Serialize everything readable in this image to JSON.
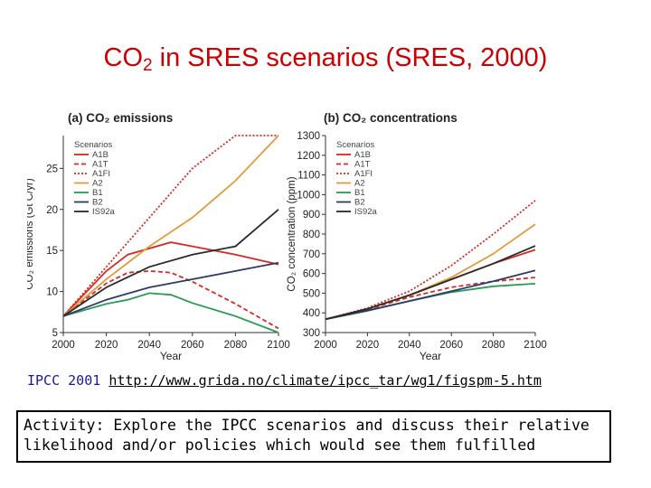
{
  "slide": {
    "title_main": "CO",
    "title_sub": "2",
    "title_rest": " in SRES scenarios (SRES, 2000)",
    "source_prefix": "IPCC 2001",
    "source_link": "http://www.grida.no/climate/ipcc_tar/wg1/figspm-5.htm",
    "activity": "Activity: Explore the IPCC scenarios and discuss their relative likelihood and/or policies which would see them fulfilled"
  },
  "colors": {
    "A1B": "#d42a24",
    "A1T": "#d42a24",
    "A1FI": "#d42a24",
    "A2": "#e39a3e",
    "B1": "#2a9a55",
    "B2": "#2e3a66",
    "IS92a": "#2a2a2a"
  },
  "chart_data": [
    {
      "type": "line",
      "title": "(a) CO₂ emissions",
      "xlabel": "Year",
      "ylabel": "CO₂ emissions (Gt C/yr)",
      "xlim": [
        2000,
        2100
      ],
      "ylim": [
        5,
        29
      ],
      "xticks": [
        2000,
        2020,
        2040,
        2060,
        2080,
        2100
      ],
      "yticks": [
        5,
        10,
        15,
        20,
        25
      ],
      "legend_title": "Scenarios",
      "legend_position": "top-left",
      "series": [
        {
          "name": "A1B",
          "style": "solid",
          "x": [
            2000,
            2020,
            2030,
            2050,
            2060,
            2080,
            2100
          ],
          "y": [
            7,
            12.5,
            14.5,
            16,
            15.5,
            14.5,
            13.3
          ]
        },
        {
          "name": "A1T",
          "style": "dashed",
          "x": [
            2000,
            2020,
            2030,
            2040,
            2050,
            2060,
            2080,
            2100
          ],
          "y": [
            7,
            11,
            12.3,
            12.5,
            12.3,
            11.2,
            8.5,
            5.5
          ]
        },
        {
          "name": "A1FI",
          "style": "dotted",
          "x": [
            2000,
            2020,
            2040,
            2060,
            2080,
            2100
          ],
          "y": [
            7,
            13,
            19,
            25,
            29,
            29
          ]
        },
        {
          "name": "A2",
          "style": "solid",
          "x": [
            2000,
            2020,
            2040,
            2060,
            2080,
            2100
          ],
          "y": [
            7,
            11.5,
            15.5,
            19,
            23.5,
            29
          ]
        },
        {
          "name": "B1",
          "style": "solid",
          "x": [
            2000,
            2020,
            2030,
            2040,
            2050,
            2060,
            2080,
            2100
          ],
          "y": [
            7,
            8.5,
            9,
            9.8,
            9.6,
            8.6,
            7,
            5
          ]
        },
        {
          "name": "B2",
          "style": "solid",
          "x": [
            2000,
            2020,
            2040,
            2060,
            2080,
            2100
          ],
          "y": [
            7,
            9,
            10.5,
            11.5,
            12.5,
            13.5
          ]
        },
        {
          "name": "IS92a",
          "style": "solid",
          "x": [
            2000,
            2020,
            2040,
            2060,
            2080,
            2100
          ],
          "y": [
            7,
            10.5,
            13,
            14.5,
            15.5,
            20
          ]
        }
      ]
    },
    {
      "type": "line",
      "title": "(b) CO₂ concentrations",
      "xlabel": "Year",
      "ylabel": "CO₂ concentration (ppm)",
      "xlim": [
        2000,
        2100
      ],
      "ylim": [
        300,
        1300
      ],
      "xticks": [
        2000,
        2020,
        2040,
        2060,
        2080,
        2100
      ],
      "yticks": [
        300,
        400,
        500,
        600,
        700,
        800,
        900,
        1000,
        1100,
        1200,
        1300
      ],
      "legend_title": "Scenarios",
      "legend_position": "top-left",
      "series": [
        {
          "name": "A1B",
          "style": "solid",
          "x": [
            2000,
            2020,
            2040,
            2060,
            2080,
            2100
          ],
          "y": [
            368,
            420,
            490,
            570,
            650,
            720
          ]
        },
        {
          "name": "A1T",
          "style": "dashed",
          "x": [
            2000,
            2020,
            2040,
            2060,
            2080,
            2100
          ],
          "y": [
            368,
            418,
            480,
            530,
            560,
            580
          ]
        },
        {
          "name": "A1FI",
          "style": "dotted",
          "x": [
            2000,
            2020,
            2040,
            2060,
            2080,
            2100
          ],
          "y": [
            368,
            425,
            510,
            640,
            800,
            970
          ]
        },
        {
          "name": "A2",
          "style": "solid",
          "x": [
            2000,
            2020,
            2040,
            2060,
            2080,
            2100
          ],
          "y": [
            368,
            420,
            490,
            580,
            700,
            850
          ]
        },
        {
          "name": "B1",
          "style": "solid",
          "x": [
            2000,
            2020,
            2040,
            2060,
            2080,
            2100
          ],
          "y": [
            368,
            410,
            460,
            505,
            535,
            548
          ]
        },
        {
          "name": "B2",
          "style": "solid",
          "x": [
            2000,
            2020,
            2040,
            2060,
            2080,
            2100
          ],
          "y": [
            368,
            412,
            460,
            510,
            560,
            615
          ]
        },
        {
          "name": "IS92a",
          "style": "solid",
          "x": [
            2000,
            2020,
            2040,
            2060,
            2080,
            2100
          ],
          "y": [
            368,
            420,
            490,
            570,
            650,
            740
          ]
        }
      ]
    }
  ]
}
